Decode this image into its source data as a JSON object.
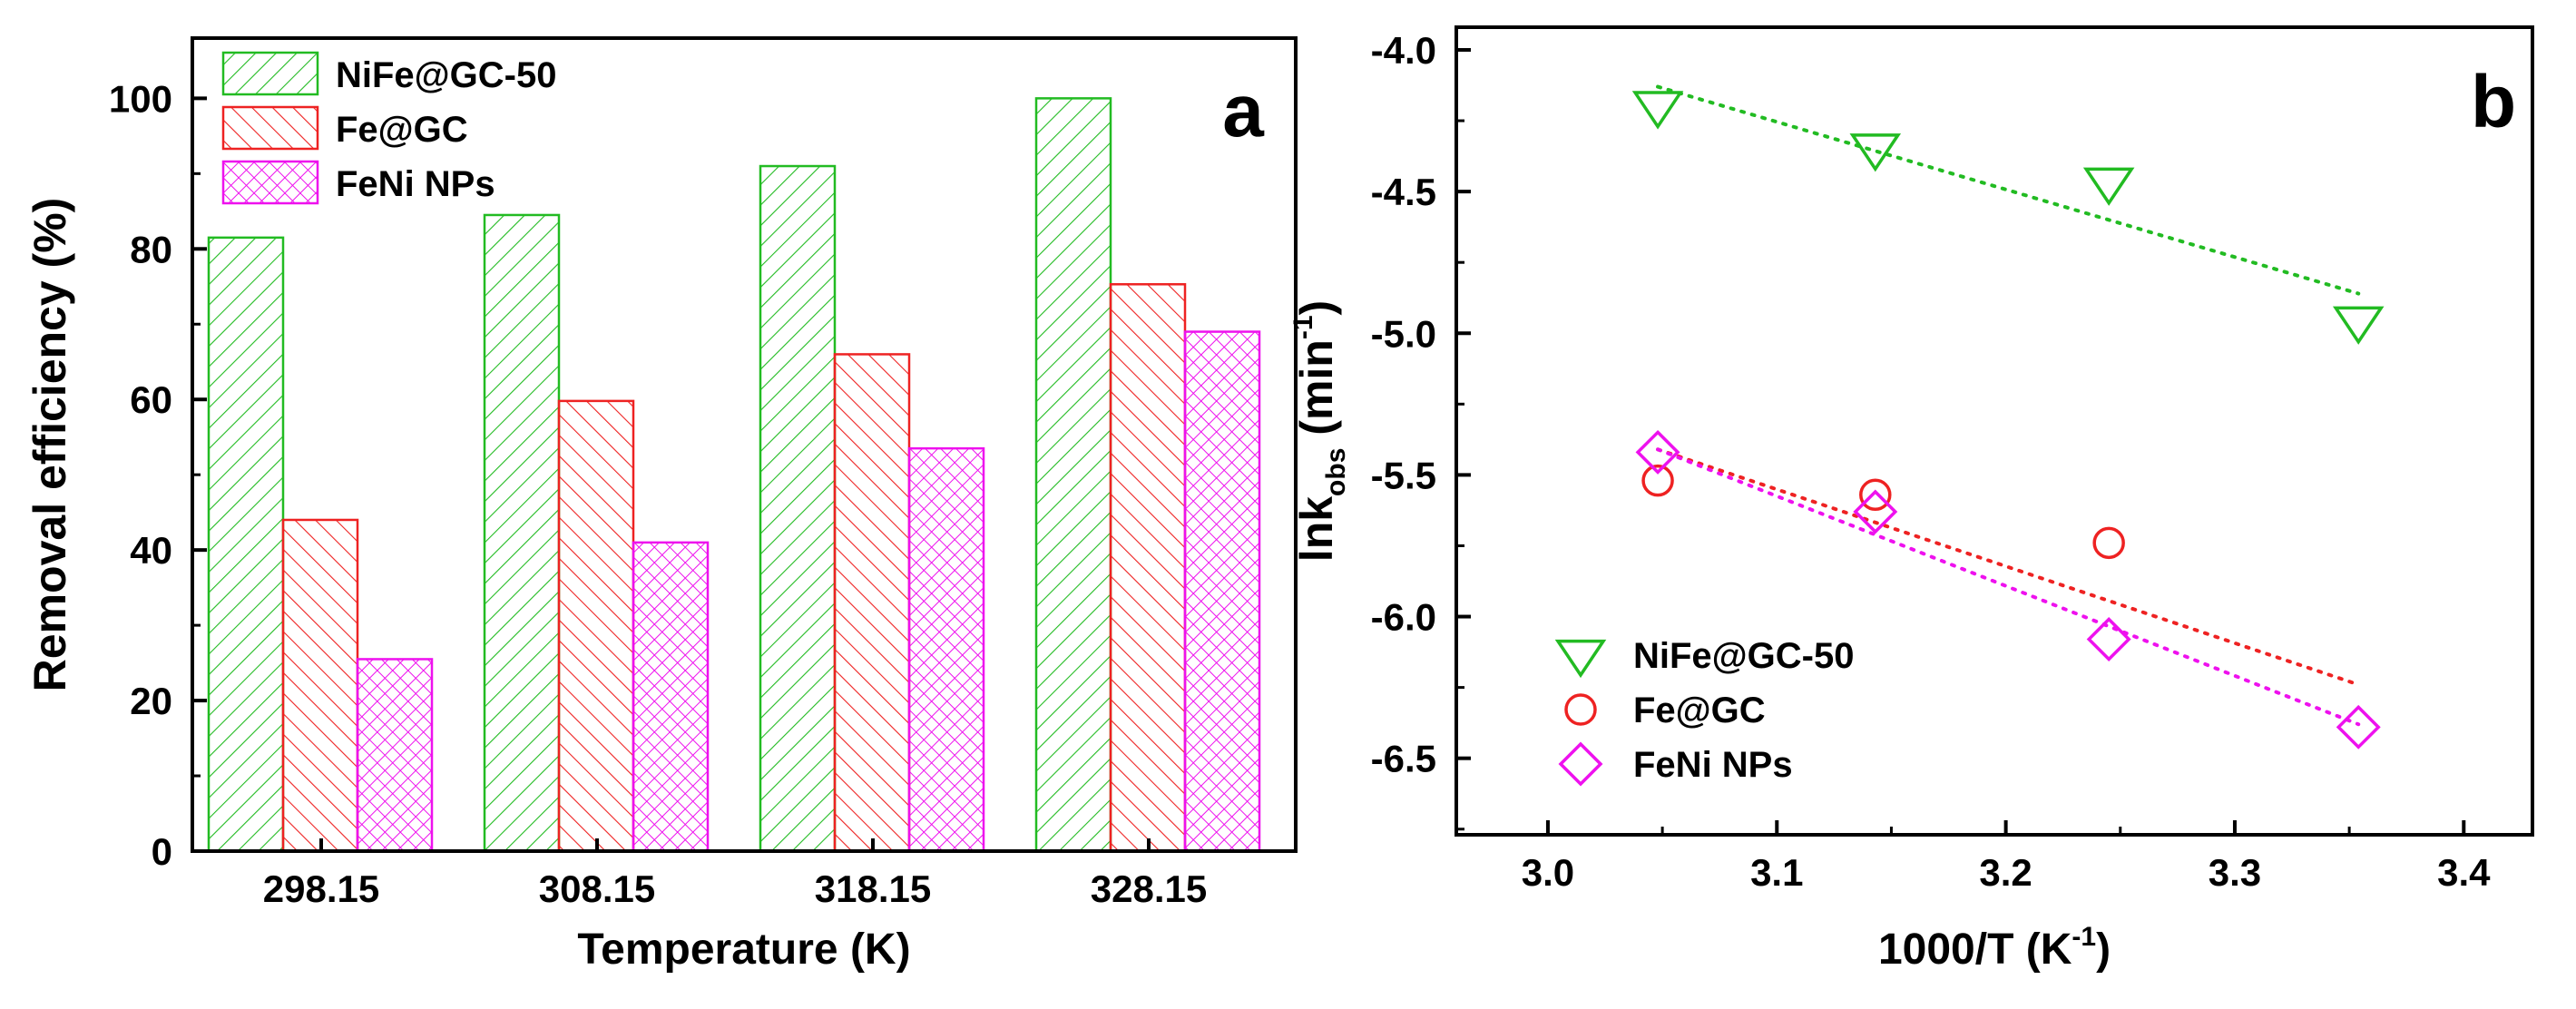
{
  "figure": {
    "panel_a_letter": "a",
    "panel_b_letter": "b"
  },
  "chart_data": [
    {
      "type": "bar",
      "panel": "a",
      "xlabel": "Temperature (K)",
      "ylabel": "Removal efficiency (%)",
      "ylim": [
        0,
        108
      ],
      "yticks": [
        0,
        20,
        40,
        60,
        80,
        100
      ],
      "categories": [
        "298.15",
        "308.15",
        "318.15",
        "328.15"
      ],
      "series": [
        {
          "name": "NiFe@GC-50",
          "color": "#22bb22",
          "pattern": "diag-right",
          "values": [
            81.5,
            84.5,
            91,
            100
          ]
        },
        {
          "name": "Fe@GC",
          "color": "#ee2222",
          "pattern": "diag-left",
          "values": [
            44,
            59.8,
            66,
            75.3
          ]
        },
        {
          "name": "FeNi NPs",
          "color": "#ee11ee",
          "pattern": "crosshatch",
          "values": [
            25.5,
            41,
            53.5,
            69
          ]
        }
      ],
      "legend_position": "top-left"
    },
    {
      "type": "scatter",
      "panel": "b",
      "xlabel": {
        "main": "1000/T (K",
        "sup": "-1",
        "close": ")"
      },
      "ylabel": {
        "main": "lnk",
        "sub": "obs",
        "mid": " (min",
        "sup": "-1",
        "close": ")"
      },
      "xlim": [
        2.96,
        3.43
      ],
      "ylim": [
        -6.77,
        -3.92
      ],
      "xticks": [
        "3.0",
        "3.1",
        "3.2",
        "3.3",
        "3.4"
      ],
      "yticks": [
        "-4.0",
        "-4.5",
        "-5.0",
        "-5.5",
        "-6.0",
        "-6.5"
      ],
      "series": [
        {
          "name": "NiFe@GC-50",
          "color": "#22bb22",
          "marker": "triangle-down",
          "x": [
            3.048,
            3.143,
            3.245,
            3.354
          ],
          "y": [
            -4.2,
            -4.35,
            -4.47,
            -4.96
          ],
          "fit": {
            "x": [
              3.048,
              3.354
            ],
            "y": [
              -4.13,
              -4.86
            ]
          }
        },
        {
          "name": "Fe@GC",
          "color": "#ee2222",
          "marker": "circle",
          "x": [
            3.048,
            3.143,
            3.245
          ],
          "y": [
            -5.52,
            -5.57,
            -5.74
          ],
          "fit": {
            "x": [
              3.048,
              3.354
            ],
            "y": [
              -5.41,
              -6.24
            ]
          }
        },
        {
          "name": "FeNi NPs",
          "color": "#ee11ee",
          "marker": "diamond",
          "x": [
            3.048,
            3.143,
            3.245,
            3.354
          ],
          "y": [
            -5.42,
            -5.63,
            -6.08,
            -6.39
          ],
          "fit": {
            "x": [
              3.048,
              3.354
            ],
            "y": [
              -5.41,
              -6.38
            ]
          }
        }
      ],
      "legend_position": "bottom-left"
    }
  ]
}
